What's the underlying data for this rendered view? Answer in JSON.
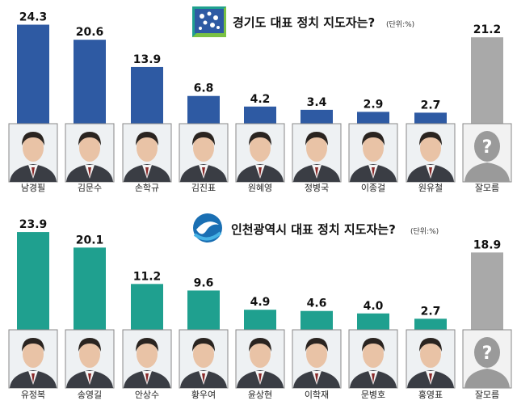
{
  "chart_data": [
    {
      "type": "bar",
      "title": "경기도 대표 정치 지도자는?",
      "unit": "(단위:%)",
      "categories": [
        "남경필",
        "김문수",
        "손학규",
        "김진표",
        "원혜영",
        "정병국",
        "이종걸",
        "원유철",
        "잘모름"
      ],
      "values": [
        24.3,
        20.6,
        13.9,
        6.8,
        4.2,
        3.4,
        2.9,
        2.7,
        21.2
      ],
      "value_labels": [
        "24.3",
        "20.6",
        "13.9",
        "6.8",
        "4.2",
        "3.4",
        "2.9",
        "2.7",
        "21.2"
      ],
      "colors": [
        "#2e5aa3",
        "#2e5aa3",
        "#2e5aa3",
        "#2e5aa3",
        "#2e5aa3",
        "#2e5aa3",
        "#2e5aa3",
        "#2e5aa3",
        "#a9a9a9"
      ],
      "ylim": [
        0,
        26
      ],
      "legend": "none"
    },
    {
      "type": "bar",
      "title": "인천광역시 대표 정치 지도자는?",
      "unit": "(단위:%)",
      "categories": [
        "유정복",
        "송영길",
        "안상수",
        "황우여",
        "윤상현",
        "이학재",
        "문병호",
        "홍영표",
        "잘모름"
      ],
      "values": [
        23.9,
        20.1,
        11.2,
        9.6,
        4.9,
        4.6,
        4.0,
        2.7,
        18.9
      ],
      "value_labels": [
        "23.9",
        "20.1",
        "11.2",
        "9.6",
        "4.9",
        "4.6",
        "4.0",
        "2.7",
        "18.9"
      ],
      "colors": [
        "#1fa08f",
        "#1fa08f",
        "#1fa08f",
        "#1fa08f",
        "#1fa08f",
        "#1fa08f",
        "#1fa08f",
        "#1fa08f",
        "#a9a9a9"
      ],
      "ylim": [
        0,
        26
      ],
      "legend": "none"
    }
  ],
  "icons": {
    "gyeonggi_logo": "gyeonggi-province-logo-icon",
    "incheon_logo": "incheon-city-logo-icon",
    "unknown_person": "question-mark-silhouette-icon"
  },
  "colors": {
    "gyeonggi_bar": "#2e5aa3",
    "incheon_bar": "#1fa08f",
    "unknown_bar": "#a9a9a9"
  }
}
